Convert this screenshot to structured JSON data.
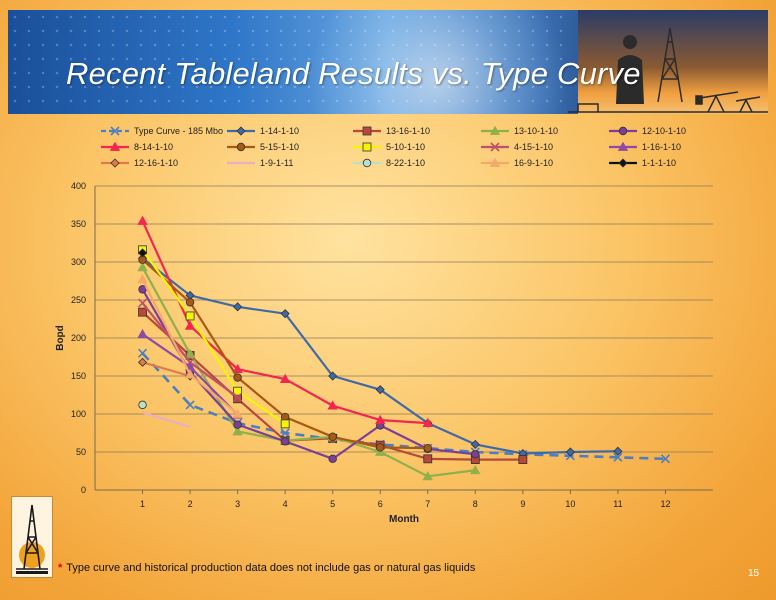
{
  "slide": {
    "title": "Recent Tableland Results vs. Type Curve",
    "page_number": "15"
  },
  "footnote": {
    "marker": "*",
    "text": "Type curve and historical production data does not include gas or natural gas liquids"
  },
  "chart_data": {
    "type": "line",
    "xlabel": "Month",
    "ylabel": "Bopd",
    "xlim": [
      0,
      13
    ],
    "ylim": [
      0,
      400
    ],
    "yticks": [
      0,
      50,
      100,
      150,
      200,
      250,
      300,
      350,
      400
    ],
    "xticks": [
      1,
      2,
      3,
      4,
      5,
      6,
      7,
      8,
      9,
      10,
      11,
      12
    ],
    "grid": "horizontal",
    "legend_position": "top",
    "series": [
      {
        "name": "Type Curve - 185 Mbo",
        "color": "#4a7fc1",
        "dash": true,
        "marker": "x",
        "x": [
          1,
          2,
          3,
          4,
          5,
          6,
          7,
          8,
          9,
          10,
          11,
          12
        ],
        "values": [
          180,
          112,
          88,
          75,
          67,
          60,
          55,
          50,
          47,
          45,
          43,
          41
        ]
      },
      {
        "name": "1-14-1-10",
        "color": "#3f6aa8",
        "marker": "diamond",
        "x": [
          1,
          2,
          3,
          4,
          5,
          6,
          7,
          8,
          9,
          10,
          11
        ],
        "values": [
          305,
          256,
          241,
          232,
          150,
          132,
          88,
          60,
          48,
          50,
          51
        ]
      },
      {
        "name": "13-16-1-10",
        "color": "#b7493c",
        "marker": "square",
        "x": [
          1,
          2,
          3,
          4,
          5,
          6,
          7,
          8,
          9
        ],
        "values": [
          234,
          177,
          120,
          65,
          68,
          59,
          41,
          40,
          40
        ]
      },
      {
        "name": "13-10-1-10",
        "color": "#8fb04a",
        "marker": "triangle",
        "x": [
          1,
          2,
          3,
          4,
          5,
          6,
          7,
          8
        ],
        "values": [
          293,
          179,
          77,
          65,
          70,
          50,
          18,
          26
        ]
      },
      {
        "name": "12-10-1-10",
        "color": "#7b3f9a",
        "marker": "circle",
        "x": [
          1,
          2,
          3,
          4,
          5,
          6,
          7,
          8
        ],
        "values": [
          264,
          155,
          86,
          64,
          41,
          85,
          54,
          47
        ]
      },
      {
        "name": "8-14-1-10",
        "color": "#f2264f",
        "marker": "triangle",
        "x": [
          1,
          2,
          3,
          4,
          5,
          6,
          7
        ],
        "values": [
          354,
          216,
          159,
          146,
          111,
          92,
          88
        ]
      },
      {
        "name": "5-15-1-10",
        "color": "#a85a12",
        "marker": "circle",
        "x": [
          1,
          2,
          3,
          4,
          5,
          6,
          7
        ],
        "values": [
          303,
          247,
          148,
          96,
          70,
          56,
          55
        ]
      },
      {
        "name": "5-10-1-10",
        "color": "#f5f500",
        "marker": "square",
        "x": [
          1,
          2,
          3,
          4
        ],
        "values": [
          316,
          229,
          130,
          87
        ]
      },
      {
        "name": "4-15-1-10",
        "color": "#c0506a",
        "marker": "x",
        "x": [
          1,
          2,
          3
        ],
        "values": [
          246,
          168,
          122
        ]
      },
      {
        "name": "1-16-1-10",
        "color": "#8f4aa8",
        "marker": "triangle",
        "x": [
          1,
          2,
          3
        ],
        "values": [
          205,
          162,
          99
        ]
      },
      {
        "name": "12-16-1-10",
        "color": "#e07a4a",
        "marker": "diamond",
        "x": [
          1,
          2
        ],
        "values": [
          168,
          150
        ]
      },
      {
        "name": "1-9-1-11",
        "color": "#e8b0c0",
        "marker": "none",
        "x": [
          1,
          2
        ],
        "values": [
          102,
          83
        ]
      },
      {
        "name": "8-22-1-10",
        "color": "#b9e0c8",
        "marker": "circle",
        "x": [
          1
        ],
        "values": [
          112
        ]
      },
      {
        "name": "16-9-1-10",
        "color": "#f4a86a",
        "marker": "triangle",
        "x": [
          1,
          2,
          3
        ],
        "values": [
          277,
          152,
          100
        ]
      },
      {
        "name": "1-1-1-10",
        "color": "#111111",
        "marker": "diamond",
        "x": [
          1
        ],
        "values": [
          312
        ]
      }
    ]
  }
}
